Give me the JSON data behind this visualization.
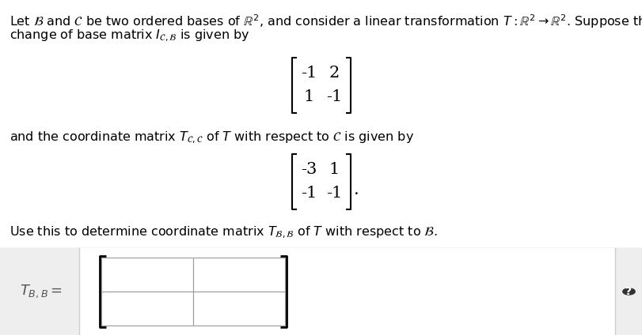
{
  "bg_color": "#ffffff",
  "text_color": "#000000",
  "footer_bg": "#eeeeee",
  "footer_border": "#cccccc",
  "box_color": "#ffffff",
  "box_border": "#999999",
  "question_mark_bg": "#333333",
  "question_mark_color": "#ffffff",
  "line1": "Let $\\mathcal{B}$ and $\\mathcal{C}$ be two ordered bases of $\\mathbb{R}^2$, and consider a linear transformation $T : \\mathbb{R}^2 \\to \\mathbb{R}^2$. Suppose that the",
  "line2": "change of base matrix $I_{\\mathcal{C},\\mathcal{B}}$ is given by",
  "line3": "and the coordinate matrix $T_{\\mathcal{C},\\mathcal{C}}$ of $T$ with respect to $\\mathcal{C}$ is given by",
  "line4": "Use this to determine coordinate matrix $T_{\\mathcal{B},\\mathcal{B}}$ of $T$ with respect to $\\mathcal{B}$.",
  "matrix1": [
    [
      "-1",
      "2"
    ],
    [
      "1",
      "-1"
    ]
  ],
  "matrix2": [
    [
      "-3",
      "1"
    ],
    [
      "-1",
      "-1"
    ]
  ],
  "answer_label": "$T_{B,B} =$",
  "fig_width": 8.12,
  "fig_height": 4.24,
  "dpi": 100
}
